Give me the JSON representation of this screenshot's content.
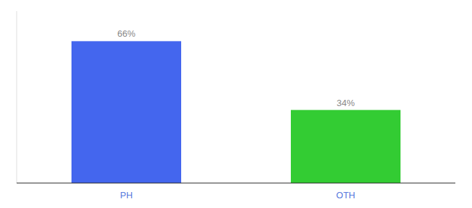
{
  "chart_data": {
    "type": "bar",
    "categories": [
      "PH",
      "OTH"
    ],
    "values": [
      66,
      34
    ],
    "value_labels": [
      "66%",
      "34%"
    ],
    "colors": [
      "#4466ee",
      "#33cc33"
    ],
    "ylim": [
      0,
      80
    ],
    "data_labels": true,
    "tick_labels": "x",
    "grid": false
  }
}
